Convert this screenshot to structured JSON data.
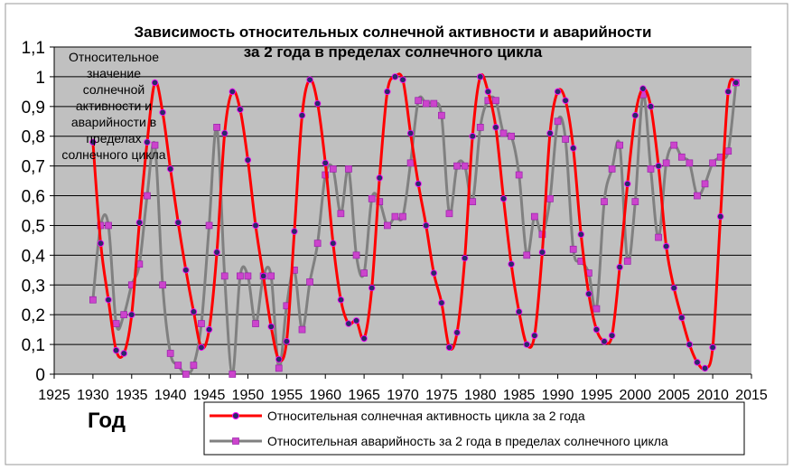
{
  "chart_data": {
    "type": "line",
    "title": [
      "Зависимость относительных солнечной активности и аварийности",
      "за 2 года в пределах солнечного цикла"
    ],
    "ylabel": [
      "Относительное",
      "значение",
      "солнечной",
      "активности и",
      "аварийности в",
      "пределах",
      "солнечного цикла"
    ],
    "xlabel": "Год",
    "xlim": [
      1925,
      2015
    ],
    "ylim": [
      0,
      1.1
    ],
    "xticks": [
      "1925",
      "1930",
      "1935",
      "1940",
      "1945",
      "1950",
      "1955",
      "1960",
      "1965",
      "1970",
      "1975",
      "1980",
      "1985",
      "1990",
      "1995",
      "2000",
      "2005",
      "2010",
      "2015"
    ],
    "yticks": [
      "0",
      "0,1",
      "0,2",
      "0,3",
      "0,4",
      "0,5",
      "0,6",
      "0,7",
      "0,8",
      "0,9",
      "1",
      "1,1"
    ],
    "grid": "horizontal",
    "legend_position": "bottom-right",
    "colors": {
      "plot_bg": "#c0c0c0",
      "gridline": "#000000",
      "series1_line": "#ff0000",
      "series1_marker": "#2a2a6a",
      "series2_line": "#808080",
      "series2_marker": "#cc44cc"
    },
    "series": [
      {
        "name": "Относительная солнечная активность цикла за 2 года",
        "points": [
          [
            1930.0,
            0.78
          ],
          [
            1931.0,
            0.44
          ],
          [
            1932.0,
            0.25
          ],
          [
            1933.0,
            0.08
          ],
          [
            1934.0,
            0.07
          ],
          [
            1935.0,
            0.2
          ],
          [
            1936.0,
            0.51
          ],
          [
            1937.0,
            0.78
          ],
          [
            1938.0,
            0.98
          ],
          [
            1939.0,
            0.88
          ],
          [
            1940.0,
            0.69
          ],
          [
            1941.0,
            0.51
          ],
          [
            1942.0,
            0.35
          ],
          [
            1943.0,
            0.21
          ],
          [
            1944.0,
            0.09
          ],
          [
            1945.0,
            0.15
          ],
          [
            1946.0,
            0.41
          ],
          [
            1947.0,
            0.81
          ],
          [
            1948.0,
            0.95
          ],
          [
            1949.0,
            0.89
          ],
          [
            1950.0,
            0.72
          ],
          [
            1951.0,
            0.5
          ],
          [
            1952.0,
            0.33
          ],
          [
            1953.0,
            0.16
          ],
          [
            1954.0,
            0.05
          ],
          [
            1955.0,
            0.11
          ],
          [
            1956.0,
            0.48
          ],
          [
            1957.0,
            0.87
          ],
          [
            1958.0,
            0.99
          ],
          [
            1959.0,
            0.91
          ],
          [
            1960.0,
            0.71
          ],
          [
            1961.0,
            0.44
          ],
          [
            1962.0,
            0.25
          ],
          [
            1963.0,
            0.17
          ],
          [
            1964.0,
            0.18
          ],
          [
            1965.0,
            0.12
          ],
          [
            1966.0,
            0.29
          ],
          [
            1967.0,
            0.66
          ],
          [
            1968.0,
            0.95
          ],
          [
            1969.0,
            1.0
          ],
          [
            1970.0,
            0.99
          ],
          [
            1971.0,
            0.81
          ],
          [
            1972.0,
            0.64
          ],
          [
            1973.0,
            0.5
          ],
          [
            1974.0,
            0.34
          ],
          [
            1975.0,
            0.24
          ],
          [
            1976.0,
            0.09
          ],
          [
            1977.0,
            0.14
          ],
          [
            1978.0,
            0.39
          ],
          [
            1979.0,
            0.8
          ],
          [
            1980.0,
            1.0
          ],
          [
            1981.0,
            0.95
          ],
          [
            1982.0,
            0.83
          ],
          [
            1983.0,
            0.59
          ],
          [
            1984.0,
            0.37
          ],
          [
            1985.0,
            0.21
          ],
          [
            1986.0,
            0.1
          ],
          [
            1987.0,
            0.13
          ],
          [
            1988.0,
            0.41
          ],
          [
            1989.0,
            0.81
          ],
          [
            1990.0,
            0.95
          ],
          [
            1991.0,
            0.92
          ],
          [
            1992.0,
            0.76
          ],
          [
            1993.0,
            0.47
          ],
          [
            1994.0,
            0.27
          ],
          [
            1995.0,
            0.15
          ],
          [
            1996.0,
            0.11
          ],
          [
            1997.0,
            0.13
          ],
          [
            1998.0,
            0.36
          ],
          [
            1999.0,
            0.64
          ],
          [
            2000.0,
            0.87
          ],
          [
            2001.0,
            0.96
          ],
          [
            2002.0,
            0.9
          ],
          [
            2003.0,
            0.7
          ],
          [
            2004.0,
            0.43
          ],
          [
            2005.0,
            0.29
          ],
          [
            2006.0,
            0.19
          ],
          [
            2007.0,
            0.1
          ],
          [
            2008.0,
            0.04
          ],
          [
            2009.0,
            0.02
          ],
          [
            2010.0,
            0.09
          ],
          [
            2011.0,
            0.53
          ],
          [
            2012.0,
            0.95
          ],
          [
            2013.0,
            0.98
          ]
        ]
      },
      {
        "name": "Относительная аварийность за 2 года в пределах солнечного цикла",
        "points": [
          [
            1930.0,
            0.25
          ],
          [
            1931.0,
            0.5
          ],
          [
            1932.0,
            0.5
          ],
          [
            1933.0,
            0.17
          ],
          [
            1934.0,
            0.2
          ],
          [
            1935.0,
            0.3
          ],
          [
            1936.0,
            0.37
          ],
          [
            1937.0,
            0.6
          ],
          [
            1938.0,
            0.77
          ],
          [
            1939.0,
            0.3
          ],
          [
            1940.0,
            0.07
          ],
          [
            1941.0,
            0.03
          ],
          [
            1942.0,
            0.0
          ],
          [
            1943.0,
            0.03
          ],
          [
            1944.0,
            0.17
          ],
          [
            1945.0,
            0.5
          ],
          [
            1946.0,
            0.83
          ],
          [
            1947.0,
            0.33
          ],
          [
            1948.0,
            0.0
          ],
          [
            1949.0,
            0.33
          ],
          [
            1950.0,
            0.33
          ],
          [
            1951.0,
            0.17
          ],
          [
            1952.0,
            0.33
          ],
          [
            1953.0,
            0.33
          ],
          [
            1954.0,
            0.02
          ],
          [
            1955.0,
            0.23
          ],
          [
            1956.0,
            0.35
          ],
          [
            1957.0,
            0.15
          ],
          [
            1958.0,
            0.31
          ],
          [
            1959.0,
            0.44
          ],
          [
            1960.0,
            0.67
          ],
          [
            1961.0,
            0.69
          ],
          [
            1962.0,
            0.54
          ],
          [
            1963.0,
            0.69
          ],
          [
            1964.0,
            0.4
          ],
          [
            1965.0,
            0.34
          ],
          [
            1966.0,
            0.59
          ],
          [
            1967.0,
            0.58
          ],
          [
            1968.0,
            0.5
          ],
          [
            1969.0,
            0.53
          ],
          [
            1970.0,
            0.53
          ],
          [
            1971.0,
            0.71
          ],
          [
            1972.0,
            0.92
          ],
          [
            1973.0,
            0.91
          ],
          [
            1974.0,
            0.91
          ],
          [
            1975.0,
            0.87
          ],
          [
            1976.0,
            0.54
          ],
          [
            1977.0,
            0.7
          ],
          [
            1978.0,
            0.7
          ],
          [
            1979.0,
            0.58
          ],
          [
            1980.0,
            0.83
          ],
          [
            1981.0,
            0.92
          ],
          [
            1982.0,
            0.92
          ],
          [
            1983.0,
            0.81
          ],
          [
            1984.0,
            0.8
          ],
          [
            1985.0,
            0.67
          ],
          [
            1986.0,
            0.4
          ],
          [
            1987.0,
            0.53
          ],
          [
            1988.0,
            0.47
          ],
          [
            1989.0,
            0.59
          ],
          [
            1990.0,
            0.85
          ],
          [
            1991.0,
            0.79
          ],
          [
            1992.0,
            0.42
          ],
          [
            1993.0,
            0.38
          ],
          [
            1994.0,
            0.34
          ],
          [
            1995.0,
            0.22
          ],
          [
            1996.0,
            0.58
          ],
          [
            1997.0,
            0.69
          ],
          [
            1998.0,
            0.77
          ],
          [
            1999.0,
            0.38
          ],
          [
            2000.0,
            0.58
          ],
          [
            2001.0,
            0.94
          ],
          [
            2002.0,
            0.69
          ],
          [
            2003.0,
            0.46
          ],
          [
            2004.0,
            0.71
          ],
          [
            2005.0,
            0.77
          ],
          [
            2006.0,
            0.73
          ],
          [
            2007.0,
            0.71
          ],
          [
            2008.0,
            0.6
          ],
          [
            2009.0,
            0.64
          ],
          [
            2010.0,
            0.71
          ],
          [
            2011.0,
            0.73
          ],
          [
            2012.0,
            0.75
          ],
          [
            2013.0,
            0.98
          ]
        ]
      }
    ]
  }
}
